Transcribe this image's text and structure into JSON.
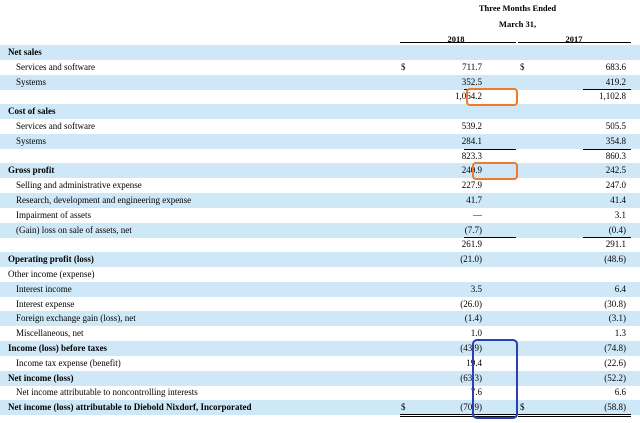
{
  "header": {
    "period_line1": "Three Months Ended",
    "period_line2": "March 31,",
    "col_2018": "2018",
    "col_2017": "2017"
  },
  "rows": [
    {
      "label": "Net sales",
      "bold": true,
      "indent": false,
      "shade": true,
      "dollar": false,
      "v2018": "",
      "v2017": ""
    },
    {
      "label": "Services and software",
      "bold": false,
      "indent": true,
      "shade": false,
      "dollar": true,
      "v2018": "711.7",
      "v2017": "683.6"
    },
    {
      "label": "Systems",
      "bold": false,
      "indent": true,
      "shade": true,
      "dollar": false,
      "v2018": "352.5",
      "v2017": "419.2"
    },
    {
      "label": "",
      "bold": false,
      "indent": false,
      "shade": false,
      "dollar": false,
      "v2018": "1,064.2",
      "v2017": "1,102.8"
    },
    {
      "label": "Cost of sales",
      "bold": true,
      "indent": false,
      "shade": true,
      "dollar": false,
      "v2018": "",
      "v2017": ""
    },
    {
      "label": "Services and software",
      "bold": false,
      "indent": true,
      "shade": false,
      "dollar": false,
      "v2018": "539.2",
      "v2017": "505.5"
    },
    {
      "label": "Systems",
      "bold": false,
      "indent": true,
      "shade": true,
      "dollar": false,
      "v2018": "284.1",
      "v2017": "354.8"
    },
    {
      "label": "",
      "bold": false,
      "indent": false,
      "shade": false,
      "dollar": false,
      "v2018": "823.3",
      "v2017": "860.3"
    },
    {
      "label": "Gross profit",
      "bold": true,
      "indent": false,
      "shade": true,
      "dollar": false,
      "v2018": "240.9",
      "v2017": "242.5"
    },
    {
      "label": "Selling and administrative expense",
      "bold": false,
      "indent": true,
      "shade": false,
      "dollar": false,
      "v2018": "227.9",
      "v2017": "247.0"
    },
    {
      "label": "Research, development and engineering expense",
      "bold": false,
      "indent": true,
      "shade": true,
      "dollar": false,
      "v2018": "41.7",
      "v2017": "41.4"
    },
    {
      "label": "Impairment of assets",
      "bold": false,
      "indent": true,
      "shade": false,
      "dollar": false,
      "v2018": "—",
      "v2017": "3.1"
    },
    {
      "label": "(Gain) loss on sale of assets, net",
      "bold": false,
      "indent": true,
      "shade": true,
      "dollar": false,
      "v2018": "(7.7)",
      "v2017": "(0.4)"
    },
    {
      "label": "",
      "bold": false,
      "indent": false,
      "shade": false,
      "dollar": false,
      "v2018": "261.9",
      "v2017": "291.1"
    },
    {
      "label": "Operating profit (loss)",
      "bold": true,
      "indent": false,
      "shade": true,
      "dollar": false,
      "v2018": "(21.0)",
      "v2017": "(48.6)"
    },
    {
      "label": "Other income (expense)",
      "bold": false,
      "indent": false,
      "shade": false,
      "dollar": false,
      "v2018": "",
      "v2017": ""
    },
    {
      "label": "Interest income",
      "bold": false,
      "indent": true,
      "shade": true,
      "dollar": false,
      "v2018": "3.5",
      "v2017": "6.4"
    },
    {
      "label": "Interest expense",
      "bold": false,
      "indent": true,
      "shade": false,
      "dollar": false,
      "v2018": "(26.0)",
      "v2017": "(30.8)"
    },
    {
      "label": "Foreign exchange gain (loss), net",
      "bold": false,
      "indent": true,
      "shade": true,
      "dollar": false,
      "v2018": "(1.4)",
      "v2017": "(3.1)"
    },
    {
      "label": "Miscellaneous, net",
      "bold": false,
      "indent": true,
      "shade": false,
      "dollar": false,
      "v2018": "1.0",
      "v2017": "1.3"
    },
    {
      "label": "Income (loss) before taxes",
      "bold": true,
      "indent": false,
      "shade": true,
      "dollar": false,
      "v2018": "(43.9)",
      "v2017": "(74.8)"
    },
    {
      "label": "Income tax expense (benefit)",
      "bold": false,
      "indent": true,
      "shade": false,
      "dollar": false,
      "v2018": "19.4",
      "v2017": "(22.6)"
    },
    {
      "label": "Net income (loss)",
      "bold": true,
      "indent": false,
      "shade": true,
      "dollar": false,
      "v2018": "(63.3)",
      "v2017": "(52.2)"
    },
    {
      "label": "Net income attributable to noncontrolling interests",
      "bold": false,
      "indent": true,
      "shade": false,
      "dollar": false,
      "v2018": "7.6",
      "v2017": "6.6"
    },
    {
      "label": "Net income (loss) attributable to Diebold Nixdorf, Incorporated",
      "bold": true,
      "indent": false,
      "shade": true,
      "dollar": true,
      "v2018": "(70.9)",
      "v2017": "(58.8)"
    }
  ],
  "dollar_sign": "$",
  "colors": {
    "shade": "#cfe8f7",
    "orange_highlight": "#f07a2a",
    "blue_highlight": "#2b3fb0"
  }
}
